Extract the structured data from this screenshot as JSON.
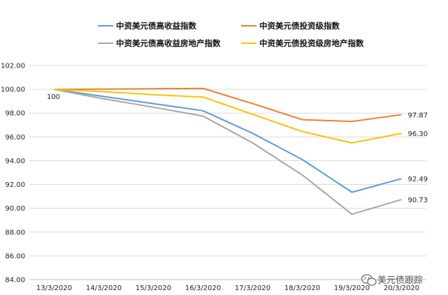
{
  "chart_data": {
    "type": "line",
    "title": "",
    "xlabel": "",
    "ylabel": "",
    "ylim": [
      84.0,
      102.0
    ],
    "y_ticks": [
      "84.00",
      "86.00",
      "88.00",
      "90.00",
      "92.00",
      "94.00",
      "96.00",
      "98.00",
      "100.00",
      "102.00"
    ],
    "grid": true,
    "legend_position": "top",
    "categories": [
      "13/3/2020",
      "14/3/2020",
      "15/3/2020",
      "16/3/2020",
      "17/3/2020",
      "18/3/2020",
      "19/3/2020",
      "20/3/2020"
    ],
    "series": [
      {
        "name": "中资美元债高收益指数",
        "color": "#5b9bd5",
        "values": [
          100.0,
          99.4,
          98.8,
          98.2,
          96.3,
          94.1,
          91.35,
          92.49
        ]
      },
      {
        "name": "中资美元债投资级指数",
        "color": "#ed7d31",
        "values": [
          100.0,
          100.02,
          100.05,
          100.08,
          98.8,
          97.45,
          97.3,
          97.87
        ]
      },
      {
        "name": "中资美元债高收益房地产指数",
        "color": "#a5a5a5",
        "values": [
          100.0,
          99.2,
          98.5,
          97.75,
          95.5,
          92.8,
          89.5,
          90.73
        ]
      },
      {
        "name": "中资美元债投资级房地产指数",
        "color": "#ffc000",
        "values": [
          100.0,
          99.8,
          99.55,
          99.35,
          97.9,
          96.45,
          95.5,
          96.3
        ]
      }
    ],
    "data_labels": [
      {
        "series": 0,
        "index": 0,
        "text": "100"
      },
      {
        "series": 1,
        "index": 7,
        "text": "97.87"
      },
      {
        "series": 3,
        "index": 7,
        "text": "96.30"
      },
      {
        "series": 0,
        "index": 7,
        "text": "92.49"
      },
      {
        "series": 2,
        "index": 7,
        "text": "90.73"
      }
    ]
  },
  "watermark": {
    "text": "美元债跟踪",
    "icon": "wechat-icon"
  }
}
